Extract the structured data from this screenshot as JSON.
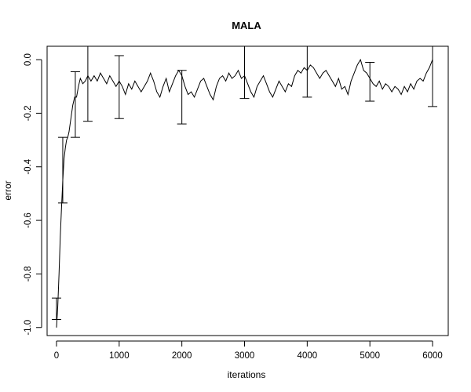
{
  "chart_data": {
    "type": "line",
    "title": "MALA",
    "xlabel": "iterations",
    "ylabel": "error",
    "xlim": [
      -150,
      6250
    ],
    "ylim": [
      -1.03,
      0.05
    ],
    "x_ticks": [
      0,
      1000,
      2000,
      3000,
      4000,
      5000,
      6000
    ],
    "x_tick_labels": [
      "0",
      "1000",
      "2000",
      "3000",
      "4000",
      "5000",
      "6000"
    ],
    "y_ticks": [
      -1.0,
      -0.8,
      -0.6,
      -0.4,
      -0.2,
      0.0
    ],
    "y_tick_labels": [
      "-1.0",
      "-0.8",
      "-0.6",
      "-0.4",
      "-0.2",
      "0.0"
    ],
    "grid": false,
    "legend": "none",
    "series": [
      {
        "x": [
          0,
          20,
          40,
          60,
          80,
          100,
          120,
          140,
          160,
          180,
          200,
          230,
          260,
          290,
          320,
          350,
          380,
          420,
          460,
          500,
          550,
          600,
          650,
          700,
          750,
          800,
          850,
          900,
          950,
          1000,
          1050,
          1100,
          1150,
          1200,
          1250,
          1300,
          1350,
          1400,
          1450,
          1500,
          1550,
          1600,
          1650,
          1700,
          1750,
          1800,
          1850,
          1900,
          1950,
          2000,
          2050,
          2100,
          2150,
          2200,
          2250,
          2300,
          2350,
          2400,
          2450,
          2500,
          2550,
          2600,
          2650,
          2700,
          2750,
          2800,
          2850,
          2900,
          2950,
          3000,
          3050,
          3100,
          3150,
          3200,
          3250,
          3300,
          3350,
          3400,
          3450,
          3500,
          3550,
          3600,
          3650,
          3700,
          3750,
          3800,
          3850,
          3900,
          3950,
          4000,
          4050,
          4100,
          4150,
          4200,
          4250,
          4300,
          4350,
          4400,
          4450,
          4500,
          4550,
          4600,
          4650,
          4700,
          4750,
          4800,
          4850,
          4900,
          4950,
          5000,
          5050,
          5100,
          5150,
          5200,
          5250,
          5300,
          5350,
          5400,
          5450,
          5500,
          5550,
          5600,
          5650,
          5700,
          5750,
          5800,
          5850,
          5900,
          5950,
          6000
        ],
        "y": [
          -1.0,
          -0.92,
          -0.8,
          -0.66,
          -0.55,
          -0.45,
          -0.37,
          -0.33,
          -0.3,
          -0.29,
          -0.27,
          -0.22,
          -0.17,
          -0.14,
          -0.14,
          -0.1,
          -0.07,
          -0.09,
          -0.08,
          -0.06,
          -0.08,
          -0.06,
          -0.08,
          -0.05,
          -0.07,
          -0.09,
          -0.06,
          -0.08,
          -0.1,
          -0.08,
          -0.1,
          -0.13,
          -0.09,
          -0.11,
          -0.08,
          -0.1,
          -0.12,
          -0.1,
          -0.08,
          -0.05,
          -0.08,
          -0.12,
          -0.14,
          -0.1,
          -0.07,
          -0.12,
          -0.09,
          -0.06,
          -0.04,
          -0.06,
          -0.1,
          -0.13,
          -0.12,
          -0.14,
          -0.11,
          -0.08,
          -0.07,
          -0.1,
          -0.13,
          -0.15,
          -0.1,
          -0.07,
          -0.06,
          -0.08,
          -0.05,
          -0.07,
          -0.06,
          -0.04,
          -0.07,
          -0.06,
          -0.09,
          -0.12,
          -0.14,
          -0.1,
          -0.08,
          -0.06,
          -0.09,
          -0.12,
          -0.14,
          -0.11,
          -0.08,
          -0.1,
          -0.12,
          -0.09,
          -0.1,
          -0.06,
          -0.04,
          -0.05,
          -0.03,
          -0.04,
          -0.02,
          -0.03,
          -0.05,
          -0.07,
          -0.05,
          -0.04,
          -0.06,
          -0.08,
          -0.1,
          -0.07,
          -0.11,
          -0.1,
          -0.13,
          -0.08,
          -0.05,
          -0.02,
          -0.0,
          -0.04,
          -0.05,
          -0.07,
          -0.09,
          -0.1,
          -0.08,
          -0.11,
          -0.09,
          -0.1,
          -0.12,
          -0.1,
          -0.11,
          -0.13,
          -0.1,
          -0.12,
          -0.09,
          -0.11,
          -0.08,
          -0.07,
          -0.08,
          -0.05,
          -0.03,
          0.0
        ]
      }
    ],
    "error_bars": [
      {
        "x": 0,
        "low": -0.97,
        "high": -0.89
      },
      {
        "x": 100,
        "low": -0.535,
        "high": -0.29
      },
      {
        "x": 300,
        "low": -0.29,
        "high": -0.045
      },
      {
        "x": 500,
        "low": -0.23,
        "high": 0.05
      },
      {
        "x": 1000,
        "low": -0.22,
        "high": 0.015
      },
      {
        "x": 2000,
        "low": -0.24,
        "high": -0.04
      },
      {
        "x": 3000,
        "low": -0.145,
        "high": 0.05
      },
      {
        "x": 4000,
        "low": -0.14,
        "high": 0.05
      },
      {
        "x": 5000,
        "low": -0.155,
        "high": -0.01
      },
      {
        "x": 6000,
        "low": -0.175,
        "high": 0.05
      }
    ]
  }
}
